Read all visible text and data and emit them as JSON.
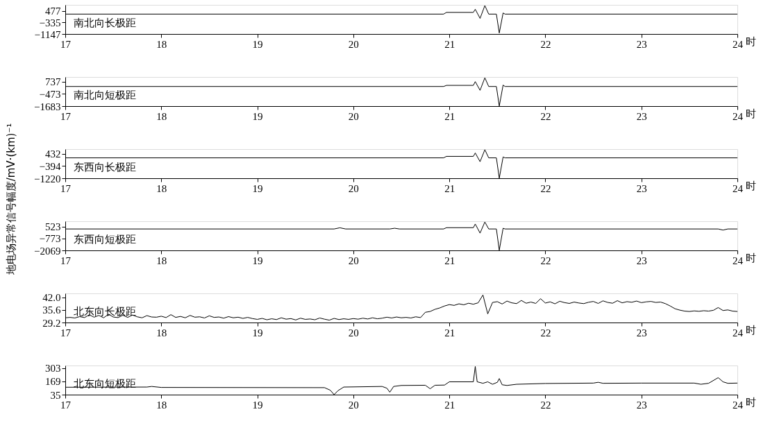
{
  "chart_data": [
    {
      "type": "line",
      "title": "南北向长极距",
      "xlabel": "时",
      "xlim": [
        17,
        24
      ],
      "xticks": [
        17,
        18,
        19,
        20,
        21,
        22,
        23,
        24
      ],
      "ylim": [
        -1147,
        900
      ],
      "yticks": [
        -1147,
        -335,
        477
      ],
      "x": [
        17,
        20.94,
        20.97,
        21.25,
        21.27,
        21.32,
        21.37,
        21.41,
        21.49,
        21.52,
        21.56,
        21.58,
        24
      ],
      "series": [
        {
          "color": "#000000",
          "values": [
            250,
            250,
            370,
            370,
            590,
            -50,
            850,
            250,
            250,
            -1080,
            330,
            250,
            250
          ]
        }
      ]
    },
    {
      "type": "line",
      "title": "南北向短极距",
      "xlabel": "时",
      "xlim": [
        17,
        24
      ],
      "xticks": [
        17,
        18,
        19,
        20,
        21,
        22,
        23,
        24
      ],
      "ylim": [
        -1683,
        1200
      ],
      "yticks": [
        -1683,
        -473,
        737
      ],
      "x": [
        17,
        20.94,
        20.97,
        21.25,
        21.27,
        21.32,
        21.37,
        21.41,
        21.49,
        21.52,
        21.56,
        21.58,
        24
      ],
      "series": [
        {
          "color": "#000000",
          "values": [
            260,
            260,
            370,
            370,
            740,
            -120,
            1120,
            260,
            260,
            -1680,
            400,
            260,
            260
          ]
        }
      ]
    },
    {
      "type": "line",
      "title": "东西向长极距",
      "xlabel": "时",
      "ylabel": "地电场异常信号幅度/mV·(km)⁻¹",
      "xlim": [
        17,
        24
      ],
      "xticks": [
        17,
        18,
        19,
        20,
        21,
        22,
        23,
        24
      ],
      "ylim": [
        -1220,
        750
      ],
      "yticks": [
        -1220,
        -394,
        432
      ],
      "x": [
        17,
        20.94,
        20.97,
        21.25,
        21.27,
        21.32,
        21.37,
        21.41,
        21.49,
        21.52,
        21.56,
        21.58,
        24
      ],
      "series": [
        {
          "color": "#000000",
          "values": [
            160,
            160,
            260,
            260,
            490,
            -100,
            710,
            160,
            160,
            -1220,
            220,
            160,
            160
          ]
        }
      ]
    },
    {
      "type": "line",
      "title": "东西向短极距",
      "xlabel": "时",
      "xlim": [
        17,
        24
      ],
      "xticks": [
        17,
        18,
        19,
        20,
        21,
        22,
        23,
        24
      ],
      "ylim": [
        -2069,
        1100
      ],
      "yticks": [
        -2069,
        -773,
        523
      ],
      "x": [
        17,
        19.8,
        19.86,
        19.92,
        20.38,
        20.43,
        20.48,
        20.94,
        20.97,
        21.25,
        21.27,
        21.32,
        21.37,
        21.41,
        21.49,
        21.52,
        21.56,
        21.58,
        23.8,
        23.85,
        23.9,
        24
      ],
      "series": [
        {
          "color": "#000000",
          "values": [
            260,
            260,
            390,
            260,
            260,
            340,
            260,
            260,
            400,
            400,
            800,
            -190,
            1020,
            260,
            260,
            -2060,
            340,
            260,
            260,
            140,
            260,
            260
          ]
        }
      ]
    },
    {
      "type": "line",
      "title": "北东向长极距",
      "xlabel": "时",
      "xlim": [
        17,
        24
      ],
      "xticks": [
        17,
        18,
        19,
        20,
        21,
        22,
        23,
        24
      ],
      "ylim": [
        29.2,
        44
      ],
      "yticks": [
        {
          "value": 29.2,
          "label": "29.2"
        },
        {
          "value": 35.6,
          "label": "35.6"
        },
        {
          "value": 42,
          "label": "42.0"
        }
      ],
      "x": [
        17,
        17.05,
        17.1,
        17.15,
        17.2,
        17.25,
        17.3,
        17.35,
        17.4,
        17.45,
        17.5,
        17.55,
        17.6,
        17.65,
        17.7,
        17.75,
        17.8,
        17.85,
        17.9,
        17.95,
        18,
        18.05,
        18.1,
        18.15,
        18.2,
        18.25,
        18.3,
        18.35,
        18.4,
        18.45,
        18.5,
        18.55,
        18.6,
        18.65,
        18.7,
        18.75,
        18.8,
        18.85,
        18.9,
        18.95,
        19,
        19.05,
        19.1,
        19.15,
        19.2,
        19.25,
        19.3,
        19.35,
        19.4,
        19.45,
        19.5,
        19.55,
        19.6,
        19.65,
        19.7,
        19.75,
        19.8,
        19.85,
        19.9,
        19.95,
        20,
        20.05,
        20.1,
        20.15,
        20.2,
        20.25,
        20.3,
        20.35,
        20.4,
        20.45,
        20.5,
        20.55,
        20.6,
        20.65,
        20.7,
        20.75,
        20.8,
        20.85,
        20.9,
        20.95,
        21,
        21.05,
        21.1,
        21.15,
        21.2,
        21.25,
        21.3,
        21.35,
        21.4,
        21.45,
        21.5,
        21.55,
        21.6,
        21.65,
        21.7,
        21.75,
        21.8,
        21.85,
        21.9,
        21.95,
        22,
        22.05,
        22.1,
        22.15,
        22.2,
        22.25,
        22.3,
        22.35,
        22.4,
        22.45,
        22.5,
        22.55,
        22.6,
        22.65,
        22.7,
        22.75,
        22.8,
        22.85,
        22.9,
        22.95,
        23,
        23.05,
        23.1,
        23.15,
        23.2,
        23.25,
        23.3,
        23.35,
        23.4,
        23.45,
        23.5,
        23.55,
        23.6,
        23.65,
        23.7,
        23.75,
        23.8,
        23.85,
        23.9,
        23.95,
        24
      ],
      "series": [
        {
          "color": "#000000",
          "values": [
            31.6,
            31.8,
            31.5,
            32.2,
            31.7,
            33.1,
            31.9,
            32.8,
            31.6,
            33.4,
            32.0,
            31.7,
            32.9,
            31.8,
            33.0,
            32.1,
            31.6,
            32.7,
            32.0,
            31.9,
            32.4,
            31.7,
            33.2,
            31.8,
            32.3,
            31.6,
            32.8,
            31.9,
            32.1,
            31.5,
            32.6,
            31.8,
            32.0,
            31.4,
            32.2,
            31.6,
            31.9,
            31.3,
            31.8,
            31.2,
            30.8,
            31.3,
            30.6,
            31.1,
            30.7,
            31.6,
            30.9,
            31.2,
            30.5,
            31.4,
            30.8,
            31.0,
            30.6,
            31.5,
            30.9,
            30.4,
            31.3,
            30.7,
            31.1,
            30.8,
            31.2,
            30.9,
            31.4,
            31.0,
            31.6,
            31.1,
            31.4,
            31.9,
            31.5,
            32.0,
            31.6,
            31.8,
            31.5,
            32.1,
            31.7,
            34.4,
            34.8,
            35.9,
            36.6,
            37.6,
            38.3,
            37.9,
            38.7,
            38.2,
            39.0,
            38.5,
            39.2,
            43.2,
            33.6,
            39.4,
            39.8,
            38.6,
            40.1,
            39.2,
            38.8,
            40.4,
            39.0,
            39.6,
            38.9,
            41.3,
            39.1,
            39.7,
            38.7,
            40.0,
            39.3,
            38.9,
            39.6,
            39.1,
            38.8,
            39.5,
            39.9,
            38.9,
            40.2,
            39.4,
            39.0,
            40.3,
            39.2,
            39.8,
            39.5,
            40.1,
            39.3,
            39.7,
            39.9,
            39.4,
            39.6,
            38.8,
            37.6,
            36.2,
            35.5,
            35.0,
            34.8,
            35.1,
            34.9,
            35.2,
            35.0,
            35.4,
            36.8,
            35.3,
            35.6,
            35.0,
            34.8
          ]
        }
      ]
    },
    {
      "type": "line",
      "title": "北东向短极距",
      "xlabel": "时",
      "xlim": [
        17,
        24
      ],
      "xticks": [
        17,
        18,
        19,
        20,
        21,
        22,
        23,
        24
      ],
      "ylim": [
        35,
        330
      ],
      "yticks": [
        35,
        169,
        303
      ],
      "x": [
        17,
        17.85,
        17.9,
        18.0,
        19.7,
        19.76,
        19.8,
        19.84,
        19.9,
        20.3,
        20.35,
        20.38,
        20.42,
        20.5,
        20.75,
        20.8,
        20.85,
        20.95,
        21.0,
        21.25,
        21.27,
        21.29,
        21.35,
        21.4,
        21.45,
        21.5,
        21.52,
        21.55,
        21.6,
        21.7,
        22.0,
        22.5,
        22.55,
        22.6,
        23.0,
        23.55,
        23.62,
        23.7,
        23.8,
        23.85,
        23.9,
        24.0
      ],
      "series": [
        {
          "color": "#000000",
          "values": [
            110,
            112,
            118,
            108,
            106,
            80,
            35,
            75,
            112,
            118,
            100,
            60,
            118,
            128,
            130,
            95,
            130,
            132,
            165,
            165,
            320,
            165,
            150,
            165,
            140,
            160,
            198,
            135,
            128,
            140,
            148,
            152,
            160,
            150,
            152,
            152,
            140,
            150,
            207,
            165,
            150,
            152
          ]
        }
      ]
    }
  ]
}
